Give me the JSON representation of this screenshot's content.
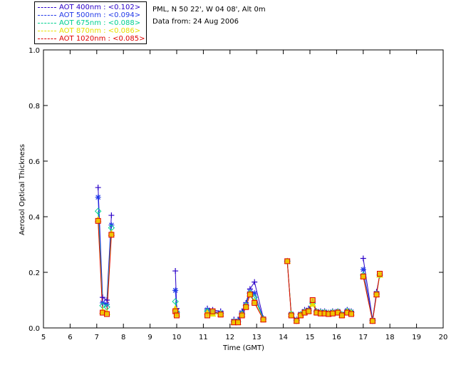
{
  "header": {
    "location": "PML, N 50 22', W 04 08', Alt 0m",
    "date_line": "Data from: 24 Aug 2006"
  },
  "legend": [
    {
      "label": "AOT  400nm : <0.102>",
      "color": "#2a00c8"
    },
    {
      "label": "AOT  500nm : <0.094>",
      "color": "#2038e8"
    },
    {
      "label": "AOT  675nm : <0.088>",
      "color": "#00d090"
    },
    {
      "label": "AOT  870nm : <0.086>",
      "color": "#e8e000"
    },
    {
      "label": "AOT 1020nm : <0.085>",
      "color": "#e00000"
    }
  ],
  "chart_data": {
    "type": "scatter",
    "xlabel": "Time (GMT)",
    "ylabel": "Aerosol Optical Thickness",
    "xlim": [
      5,
      20
    ],
    "ylim": [
      0.0,
      1.0
    ],
    "xticks": [
      "5",
      "6",
      "7",
      "8",
      "9",
      "10",
      "11",
      "12",
      "13",
      "14",
      "15",
      "16",
      "17",
      "18",
      "19",
      "20"
    ],
    "yticks": [
      "0.0",
      "0.2",
      "0.4",
      "0.6",
      "0.8",
      "1.0"
    ],
    "x": [
      7.05,
      7.22,
      7.38,
      7.55,
      9.95,
      10.0,
      11.15,
      11.35,
      11.65,
      12.15,
      12.3,
      12.45,
      12.6,
      12.75,
      12.92,
      13.25,
      14.15,
      14.3,
      14.5,
      14.65,
      14.8,
      14.95,
      15.1,
      15.25,
      15.4,
      15.55,
      15.7,
      15.85,
      16.05,
      16.2,
      16.4,
      16.55,
      17.0,
      17.35,
      17.5,
      17.62
    ],
    "series": [
      {
        "name": "AOT  400nm : <0.102>",
        "color": "#2a00c8",
        "marker": "plus",
        "values": [
          0.505,
          0.11,
          0.1,
          0.405,
          0.205,
          0.07,
          0.07,
          0.065,
          0.06,
          0.03,
          0.03,
          0.06,
          0.09,
          0.14,
          0.165,
          0.035,
          0.24,
          0.05,
          0.03,
          0.05,
          0.065,
          0.07,
          0.095,
          0.06,
          0.06,
          0.06,
          0.055,
          0.06,
          0.06,
          0.05,
          0.065,
          0.06,
          0.25,
          0.03,
          0.13,
          0.19
        ]
      },
      {
        "name": "AOT  500nm : <0.094>",
        "color": "#2038e8",
        "marker": "star",
        "values": [
          0.47,
          0.09,
          0.085,
          0.37,
          0.135,
          0.06,
          0.065,
          0.06,
          0.055,
          0.025,
          0.025,
          0.055,
          0.085,
          0.13,
          0.125,
          0.033,
          0.24,
          0.05,
          0.028,
          0.05,
          0.06,
          0.065,
          0.09,
          0.06,
          0.058,
          0.058,
          0.055,
          0.058,
          0.06,
          0.05,
          0.063,
          0.058,
          0.21,
          0.028,
          0.125,
          0.19
        ]
      },
      {
        "name": "AOT  675nm : <0.088>",
        "color": "#00d090",
        "marker": "diamond",
        "values": [
          0.42,
          0.08,
          0.075,
          0.36,
          0.095,
          0.055,
          0.06,
          0.055,
          0.052,
          0.022,
          0.022,
          0.05,
          0.08,
          0.125,
          0.11,
          0.032,
          0.24,
          0.05,
          0.026,
          0.048,
          0.058,
          0.062,
          0.088,
          0.058,
          0.056,
          0.056,
          0.053,
          0.056,
          0.058,
          0.048,
          0.06,
          0.056,
          0.19,
          0.026,
          0.122,
          0.19
        ]
      },
      {
        "name": "AOT  870nm : <0.086>",
        "color": "#e8e000",
        "marker": "triangle",
        "values": [
          0.39,
          0.06,
          0.055,
          0.34,
          0.07,
          0.05,
          0.055,
          0.05,
          0.05,
          0.02,
          0.02,
          0.048,
          0.078,
          0.122,
          0.095,
          0.03,
          0.24,
          0.048,
          0.025,
          0.046,
          0.056,
          0.06,
          0.086,
          0.056,
          0.054,
          0.054,
          0.052,
          0.054,
          0.056,
          0.046,
          0.058,
          0.054,
          0.185,
          0.025,
          0.12,
          0.19
        ]
      },
      {
        "name": "AOT 1020nm : <0.085>",
        "color": "#e00000",
        "marker": "square",
        "values": [
          0.385,
          0.055,
          0.05,
          0.335,
          0.06,
          0.045,
          0.045,
          0.06,
          0.048,
          0.02,
          0.02,
          0.045,
          0.075,
          0.12,
          0.09,
          0.03,
          0.24,
          0.045,
          0.025,
          0.045,
          0.055,
          0.06,
          0.1,
          0.055,
          0.052,
          0.052,
          0.05,
          0.052,
          0.055,
          0.045,
          0.055,
          0.05,
          0.185,
          0.025,
          0.12,
          0.195
        ]
      }
    ]
  }
}
